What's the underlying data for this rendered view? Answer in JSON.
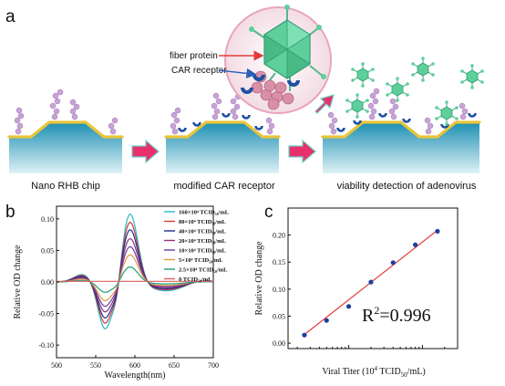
{
  "panels": {
    "a": "a",
    "b": "b",
    "c": "c"
  },
  "panel_a": {
    "captions": [
      "Nano RHB chip",
      "modified CAR receptor",
      "viability detection of adenovirus"
    ],
    "fiber_protein": "fiber protein",
    "car_receptor": "CAR receptor"
  },
  "colors": {
    "chip_top": "#1d8fb3",
    "chip_bottom": "#dff2f6",
    "gold": "#e9c43a",
    "bead": "#c9a2d8",
    "receptor": "#1f4fa0",
    "virus": "#5ecf9b",
    "arrow": "#e8316a",
    "fit_line": "#e33b3b",
    "fit_points": "#1f3fa0"
  },
  "chart_data": [
    {
      "type": "line",
      "xlabel": "Wavelength(nm)",
      "ylabel": "Relative OD change",
      "xlim": [
        500,
        700
      ],
      "ylim": [
        -0.12,
        0.12
      ],
      "xticks": [
        500,
        550,
        600,
        650,
        700
      ],
      "yticks": [
        -0.1,
        -0.05,
        0.0,
        0.05,
        0.1
      ],
      "tick_labels_y": [
        "-0.10",
        "-0.05",
        "0.00",
        "0.05",
        "0.10"
      ],
      "legend_position": "top-right",
      "series": [
        {
          "name": "160×10⁴ TCID₅₀/mL",
          "color": "#2ab8c4",
          "amp": 1.0
        },
        {
          "name": "80×10⁴ TCID₅₀/mL",
          "color": "#d03a3a",
          "amp": 0.88
        },
        {
          "name": "40×10⁴ TCID₅₀/mL",
          "color": "#1c2f8c",
          "amp": 0.77
        },
        {
          "name": "20×10⁴ TCID₅₀/mL",
          "color": "#8b2f7e",
          "amp": 0.64
        },
        {
          "name": "10×10⁴ TCID₅₀/mL",
          "color": "#6a3fa0",
          "amp": 0.52
        },
        {
          "name": "5×10⁴ TCID₅₀/mL",
          "color": "#e59a3a",
          "amp": 0.4
        },
        {
          "name": "2.5×10⁴ TCID₅₀/mL",
          "color": "#1c9e7c",
          "amp": 0.22
        },
        {
          "name": "0 TCID₅₀/mL",
          "color": "#e06060",
          "amp": 0.0
        }
      ]
    },
    {
      "type": "scatter",
      "xlabel_main": "Viral Titer (10",
      "xlabel_sup": "4",
      "xlabel_rest": " TCID",
      "xlabel_sub": "50",
      "xlabel_end": "/mL)",
      "ylabel": "Relative OD change",
      "x_scale": "log",
      "xlim": [
        1.5,
        300
      ],
      "ylim": [
        -0.01,
        0.25
      ],
      "yticks": [
        0.0,
        0.05,
        0.1,
        0.15,
        0.2
      ],
      "tick_labels_y": [
        "0.00",
        "0.05",
        "0.10",
        "0.15",
        "0.20"
      ],
      "x": [
        2.5,
        5,
        10,
        20,
        40,
        80,
        160
      ],
      "y": [
        0.015,
        0.042,
        0.068,
        0.113,
        0.149,
        0.182,
        0.207
      ],
      "fit": {
        "x": [
          2.5,
          160
        ],
        "y": [
          0.016,
          0.209
        ]
      },
      "annotation": {
        "main": "R",
        "sup": "2",
        "rest": "=0.996"
      }
    }
  ]
}
